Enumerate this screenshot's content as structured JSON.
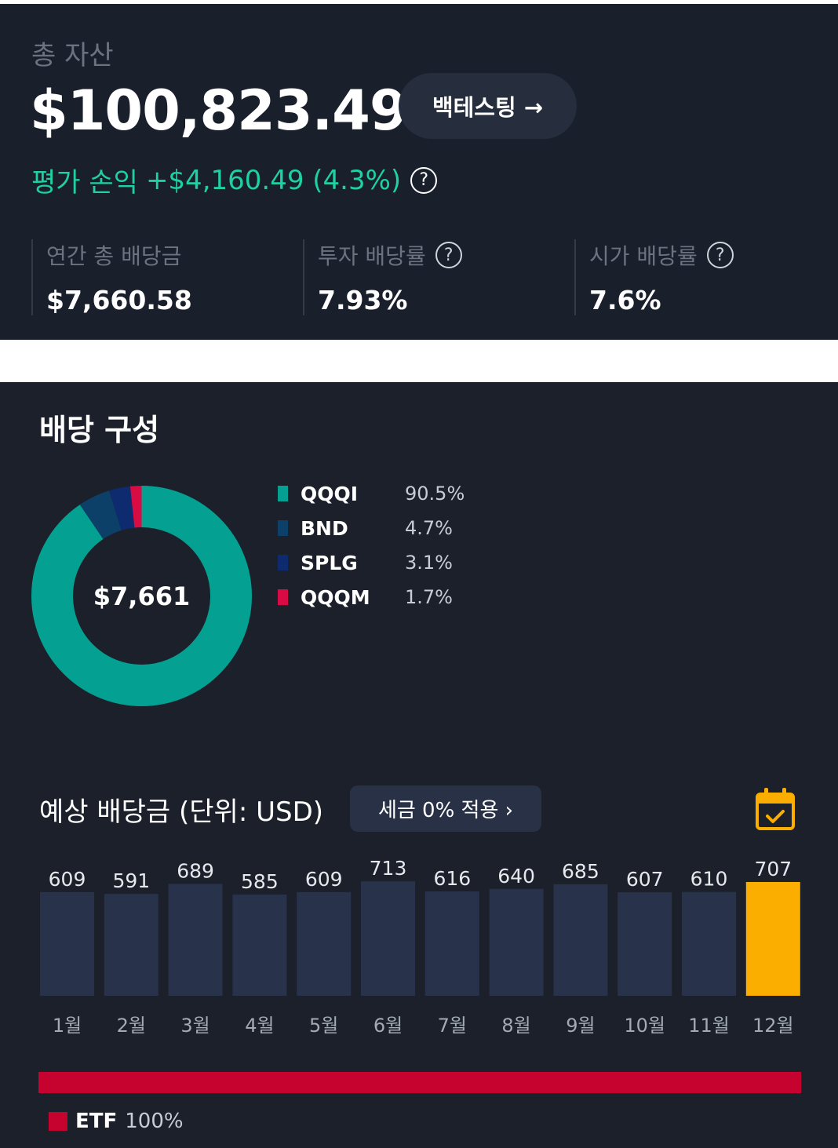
{
  "summary": {
    "total_assets_label": "총 자산",
    "total_assets_value": "$100,823.49",
    "backtest_label": "백테스팅 →",
    "pnl_label": "평가 손익",
    "pnl_value": "+$4,160.49 (4.3%)",
    "help_icon": "?",
    "stats": [
      {
        "label": "연간 총 배당금",
        "value": "$7,660.58",
        "help": false
      },
      {
        "label": "투자 배당률",
        "value": "7.93%",
        "help": true
      },
      {
        "label": "시가 배당률",
        "value": "7.6%",
        "help": true
      }
    ]
  },
  "composition": {
    "title": "배당 구성",
    "total": "$7,661",
    "items": [
      {
        "name": "QQQI",
        "pct_label": "90.5%",
        "pct": 90.5,
        "color": "#04a092"
      },
      {
        "name": "BND",
        "pct_label": "4.7%",
        "pct": 4.7,
        "color": "#0c4068"
      },
      {
        "name": "SPLG",
        "pct_label": "3.1%",
        "pct": 3.1,
        "color": "#0d2b6e"
      },
      {
        "name": "QQQM",
        "pct_label": "1.7%",
        "pct": 1.7,
        "color": "#d80b44"
      }
    ]
  },
  "expected": {
    "title": "예상 배당금 (단위: USD)",
    "tax_button": "세금 0% 적용 ›",
    "calendar_icon": "calendar-check-icon",
    "bar_color": "#28324a",
    "highlight_color": "#fbae00"
  },
  "chart_data": {
    "type": "bar",
    "categories": [
      "1월",
      "2월",
      "3월",
      "4월",
      "5월",
      "6월",
      "7월",
      "8월",
      "9월",
      "10월",
      "11월",
      "12월"
    ],
    "values": [
      609,
      591,
      689,
      585,
      609,
      713,
      616,
      640,
      685,
      607,
      610,
      707
    ],
    "highlight_index": 11
  },
  "asset_type": {
    "name": "ETF",
    "pct_label": "100%",
    "color": "#c6032f"
  }
}
